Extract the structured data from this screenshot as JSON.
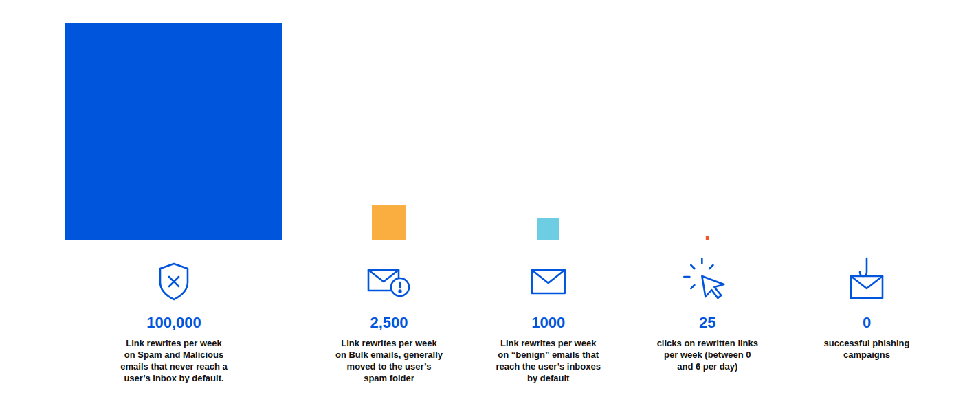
{
  "chart_data": {
    "type": "square",
    "categories": [
      "Link rewrites per week\non Spam and Malicious\nemails that never reach a\nuser’s inbox by default.",
      "Link rewrites per week\non Bulk emails, generally\nmoved to the user’s\nspam folder",
      "Link rewrites per week\non “benign” emails that\nreach the user’s inboxes\nby default",
      "clicks on rewritten links\nper week (between 0\nand 6 per day)",
      "successful phishing\ncampaigns"
    ],
    "values": [
      100000,
      2500,
      1000,
      25,
      0
    ],
    "value_labels": [
      "100,000",
      "2,500",
      "1000",
      "25",
      "0"
    ],
    "colors": [
      "#0055dd",
      "#fbae40",
      "#6dcde2",
      "#f2562b",
      "#0055dd"
    ],
    "data_labels": true,
    "tick_labels": false
  }
}
